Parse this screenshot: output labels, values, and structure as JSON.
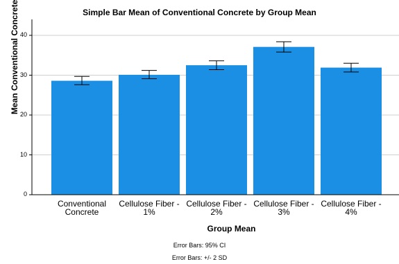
{
  "chart_data": {
    "type": "bar",
    "title": "Simple Bar Mean of Conventional Concrete by Group Mean",
    "xlabel": "Group Mean",
    "ylabel": "Mean Conventional Concrete",
    "categories": [
      [
        "Conventional",
        "Concrete"
      ],
      [
        "Cellulose Fiber -",
        "1%"
      ],
      [
        "Cellulose Fiber -",
        "2%"
      ],
      [
        "Cellulose Fiber -",
        "3%"
      ],
      [
        "Cellulose Fiber -",
        "4%"
      ]
    ],
    "values": [
      28.6,
      30.1,
      32.5,
      37.1,
      31.9
    ],
    "error_low": [
      27.6,
      29.1,
      31.4,
      35.8,
      30.8
    ],
    "error_high": [
      29.7,
      31.2,
      33.6,
      38.4,
      33.0
    ],
    "ylim": [
      0,
      44
    ],
    "yticks": [
      0,
      10,
      20,
      30,
      40
    ],
    "grid": true,
    "bar_color": "#1a8fe3",
    "footnotes": [
      "Error Bars: 95% CI",
      "Error Bars: +/- 2 SD"
    ]
  }
}
